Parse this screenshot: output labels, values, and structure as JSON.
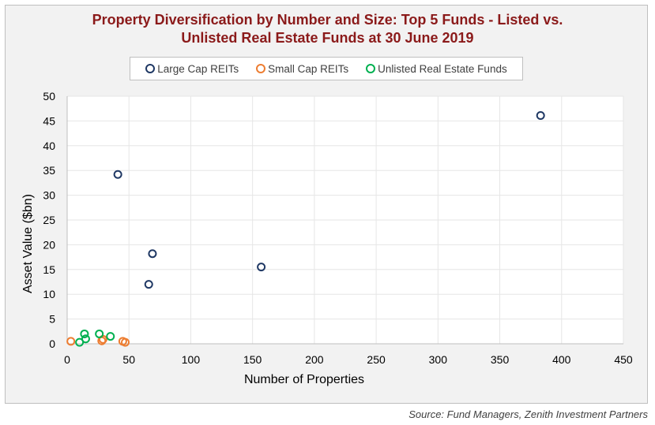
{
  "chart_data": {
    "type": "scatter",
    "title_line1": "Property Diversification by Number and Size: Top 5 Funds - Listed vs.",
    "title_line2": "Unlisted Real Estate Funds at 30 June 2019",
    "xlabel": "Number of Properties",
    "ylabel": "Asset Value ($bn)",
    "xlim": [
      0,
      450
    ],
    "ylim": [
      0,
      50
    ],
    "xticks": [
      0,
      50,
      100,
      150,
      200,
      250,
      300,
      350,
      400,
      450
    ],
    "yticks": [
      0,
      5,
      10,
      15,
      20,
      25,
      30,
      35,
      40,
      45,
      50
    ],
    "grid": true,
    "legend_position": "top",
    "series": [
      {
        "name": "Large Cap REITs",
        "color": "#1f3864",
        "points": [
          [
            41,
            34.2
          ],
          [
            69,
            18.2
          ],
          [
            66,
            12.0
          ],
          [
            157,
            15.5
          ],
          [
            383,
            46.1
          ]
        ]
      },
      {
        "name": "Small Cap REITs",
        "color": "#ed7d31",
        "points": [
          [
            3,
            0.5
          ],
          [
            28,
            0.6
          ],
          [
            29,
            0.9
          ],
          [
            45,
            0.5
          ],
          [
            47,
            0.3
          ]
        ]
      },
      {
        "name": "Unlisted Real Estate Funds",
        "color": "#00b050",
        "points": [
          [
            10,
            0.3
          ],
          [
            14,
            2.0
          ],
          [
            15,
            1.0
          ],
          [
            26,
            2.0
          ],
          [
            35,
            1.5
          ]
        ]
      }
    ]
  },
  "source": "Source: Fund Managers, Zenith Investment Partners"
}
